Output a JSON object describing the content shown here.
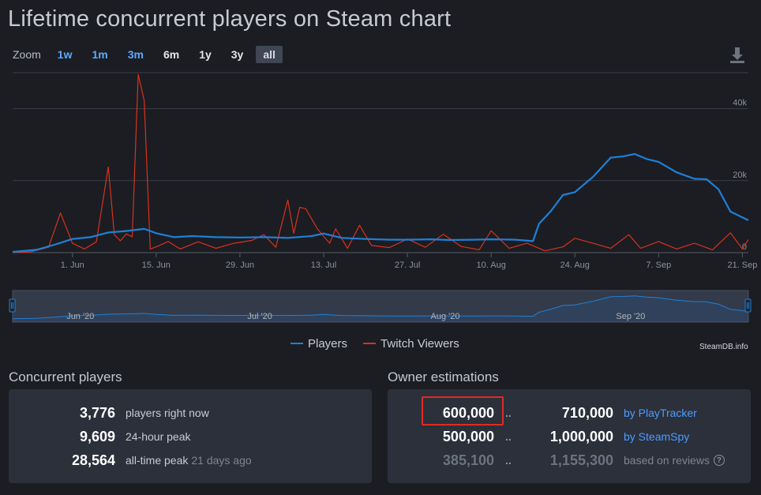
{
  "page": {
    "title": "Lifetime concurrent players on Steam chart"
  },
  "zoom": {
    "label": "Zoom",
    "buttons": [
      {
        "label": "1w",
        "style": "link"
      },
      {
        "label": "1m",
        "style": "link"
      },
      {
        "label": "3m",
        "style": "link"
      },
      {
        "label": "6m",
        "style": "plain"
      },
      {
        "label": "1y",
        "style": "plain"
      },
      {
        "label": "3y",
        "style": "plain"
      },
      {
        "label": "all",
        "style": "active"
      }
    ],
    "download_icon": "download-icon"
  },
  "legend": {
    "players": "Players",
    "twitch": "Twitch Viewers"
  },
  "credit": "SteamDB.info",
  "colors": {
    "players": "#1e80d8",
    "twitch": "#d8321c",
    "background": "#1b1d23",
    "panel": "#2b303a",
    "link": "#4d9bff",
    "highlight": "#e02b24"
  },
  "chart_data": {
    "type": "line",
    "title": "Lifetime concurrent players on Steam chart",
    "x_range": [
      "2020-05-22",
      "2020-09-22"
    ],
    "x_ticks": [
      {
        "date": "2020-06-01",
        "label": "1. Jun"
      },
      {
        "date": "2020-06-15",
        "label": "15. Jun"
      },
      {
        "date": "2020-06-29",
        "label": "29. Jun"
      },
      {
        "date": "2020-07-13",
        "label": "13. Jul"
      },
      {
        "date": "2020-07-27",
        "label": "27. Jul"
      },
      {
        "date": "2020-08-10",
        "label": "10. Aug"
      },
      {
        "date": "2020-08-24",
        "label": "24. Aug"
      },
      {
        "date": "2020-09-07",
        "label": "7. Sep"
      },
      {
        "date": "2020-09-21",
        "label": "21. Sep"
      }
    ],
    "y_axis": {
      "ylim": [
        0,
        50000
      ],
      "ticks": [
        0,
        20000,
        40000
      ],
      "tick_labels": [
        "0",
        "20k",
        "40k"
      ],
      "position": "right"
    },
    "grid": true,
    "legend_position": "bottom",
    "navigator": {
      "labels": [
        {
          "date": "2020-06-01",
          "label": "Jun '20"
        },
        {
          "date": "2020-07-01",
          "label": "Jul '20"
        },
        {
          "date": "2020-08-01",
          "label": "Aug '20"
        },
        {
          "date": "2020-09-01",
          "label": "Sep '20"
        }
      ]
    },
    "series": [
      {
        "name": "Players",
        "color": "#1e80d8",
        "points": [
          [
            "2020-05-22",
            200
          ],
          [
            "2020-05-26",
            800
          ],
          [
            "2020-05-29",
            2200
          ],
          [
            "2020-06-01",
            3800
          ],
          [
            "2020-06-04",
            4300
          ],
          [
            "2020-06-07",
            5600
          ],
          [
            "2020-06-10",
            6000
          ],
          [
            "2020-06-13",
            6600
          ],
          [
            "2020-06-15",
            5400
          ],
          [
            "2020-06-18",
            4300
          ],
          [
            "2020-06-21",
            4600
          ],
          [
            "2020-06-25",
            4300
          ],
          [
            "2020-06-29",
            4200
          ],
          [
            "2020-07-03",
            4300
          ],
          [
            "2020-07-07",
            4100
          ],
          [
            "2020-07-11",
            4600
          ],
          [
            "2020-07-13",
            5300
          ],
          [
            "2020-07-16",
            4100
          ],
          [
            "2020-07-20",
            3800
          ],
          [
            "2020-07-24",
            3600
          ],
          [
            "2020-07-27",
            3600
          ],
          [
            "2020-07-31",
            3700
          ],
          [
            "2020-08-03",
            3500
          ],
          [
            "2020-08-07",
            3600
          ],
          [
            "2020-08-10",
            3700
          ],
          [
            "2020-08-14",
            3600
          ],
          [
            "2020-08-17",
            3200
          ],
          [
            "2020-08-18",
            8000
          ],
          [
            "2020-08-20",
            11600
          ],
          [
            "2020-08-22",
            16000
          ],
          [
            "2020-08-24",
            16800
          ],
          [
            "2020-08-27",
            21000
          ],
          [
            "2020-08-30",
            26400
          ],
          [
            "2020-09-01",
            26700
          ],
          [
            "2020-09-03",
            27400
          ],
          [
            "2020-09-05",
            26000
          ],
          [
            "2020-09-07",
            25200
          ],
          [
            "2020-09-10",
            22300
          ],
          [
            "2020-09-13",
            20500
          ],
          [
            "2020-09-15",
            20400
          ],
          [
            "2020-09-17",
            17600
          ],
          [
            "2020-09-19",
            11400
          ],
          [
            "2020-09-22",
            9000
          ]
        ]
      },
      {
        "name": "Twitch Viewers",
        "color": "#d8321c",
        "points": [
          [
            "2020-05-22",
            0
          ],
          [
            "2020-05-25",
            200
          ],
          [
            "2020-05-28",
            1500
          ],
          [
            "2020-05-30",
            11000
          ],
          [
            "2020-06-01",
            2600
          ],
          [
            "2020-06-03",
            1000
          ],
          [
            "2020-06-05",
            3000
          ],
          [
            "2020-06-07",
            23800
          ],
          [
            "2020-06-08",
            5000
          ],
          [
            "2020-06-09",
            3300
          ],
          [
            "2020-06-10",
            5200
          ],
          [
            "2020-06-11",
            4400
          ],
          [
            "2020-06-12",
            49500
          ],
          [
            "2020-06-13",
            42200
          ],
          [
            "2020-06-14",
            1000
          ],
          [
            "2020-06-15",
            1600
          ],
          [
            "2020-06-17",
            3100
          ],
          [
            "2020-06-19",
            1000
          ],
          [
            "2020-06-22",
            3000
          ],
          [
            "2020-06-25",
            1200
          ],
          [
            "2020-06-28",
            2600
          ],
          [
            "2020-07-01",
            3400
          ],
          [
            "2020-07-03",
            5000
          ],
          [
            "2020-07-05",
            1500
          ],
          [
            "2020-07-07",
            14600
          ],
          [
            "2020-07-08",
            5300
          ],
          [
            "2020-07-09",
            12600
          ],
          [
            "2020-07-10",
            12200
          ],
          [
            "2020-07-12",
            6500
          ],
          [
            "2020-07-14",
            2600
          ],
          [
            "2020-07-15",
            6600
          ],
          [
            "2020-07-17",
            1200
          ],
          [
            "2020-07-19",
            7600
          ],
          [
            "2020-07-21",
            2000
          ],
          [
            "2020-07-24",
            1400
          ],
          [
            "2020-07-27",
            3800
          ],
          [
            "2020-07-30",
            1500
          ],
          [
            "2020-08-02",
            5100
          ],
          [
            "2020-08-05",
            1700
          ],
          [
            "2020-08-08",
            800
          ],
          [
            "2020-08-10",
            6100
          ],
          [
            "2020-08-13",
            1200
          ],
          [
            "2020-08-16",
            2600
          ],
          [
            "2020-08-19",
            500
          ],
          [
            "2020-08-22",
            1600
          ],
          [
            "2020-08-24",
            4000
          ],
          [
            "2020-08-27",
            2600
          ],
          [
            "2020-08-30",
            1200
          ],
          [
            "2020-09-02",
            5000
          ],
          [
            "2020-09-04",
            1200
          ],
          [
            "2020-09-07",
            3100
          ],
          [
            "2020-09-10",
            1000
          ],
          [
            "2020-09-13",
            2600
          ],
          [
            "2020-09-16",
            800
          ],
          [
            "2020-09-19",
            5500
          ],
          [
            "2020-09-21",
            1000
          ],
          [
            "2020-09-22",
            3600
          ]
        ]
      }
    ]
  },
  "concurrent": {
    "title": "Concurrent players",
    "rows": [
      {
        "value": "3,776",
        "label": "players right now",
        "note": ""
      },
      {
        "value": "9,609",
        "label": "24-hour peak",
        "note": ""
      },
      {
        "value": "28,564",
        "label": "all-time peak",
        "note": "21 days ago"
      }
    ]
  },
  "owners": {
    "title": "Owner estimations",
    "rows": [
      {
        "low": "600,000",
        "sep": "..",
        "high": "710,000",
        "source": "by PlayTracker",
        "style": "link"
      },
      {
        "low": "500,000",
        "sep": "..",
        "high": "1,000,000",
        "source": "by SteamSpy",
        "style": "link"
      },
      {
        "low": "385,100",
        "sep": "..",
        "high": "1,155,300",
        "source": "based on reviews",
        "style": "faded"
      }
    ],
    "help_icon": "help-icon"
  }
}
